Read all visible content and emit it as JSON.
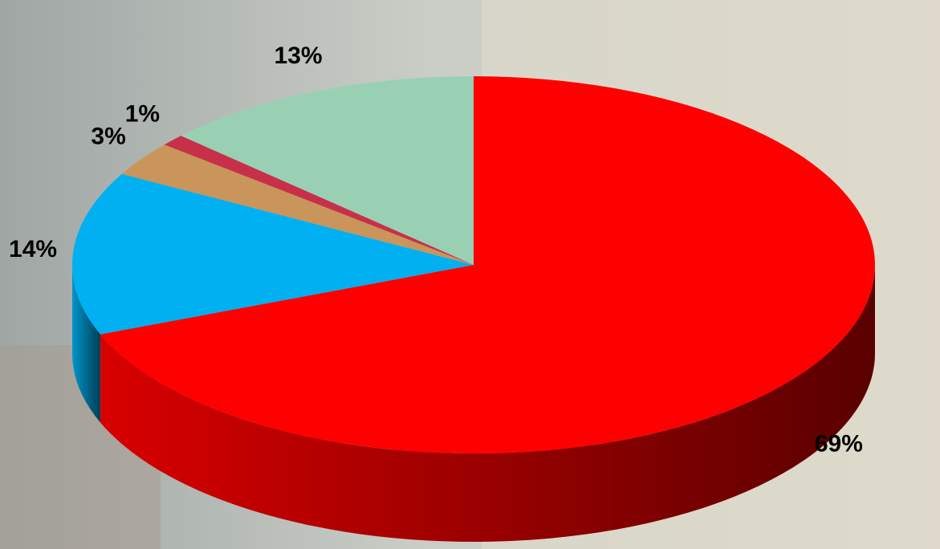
{
  "chart_data": {
    "type": "pie",
    "values": [
      69,
      14,
      3,
      1,
      13
    ],
    "value_labels": [
      "69%",
      "14%",
      "3%",
      "1%",
      "13%"
    ],
    "colors": [
      "#ff0000",
      "#00b0f0",
      "#c9955a",
      "#c8304a",
      "#99d0b4"
    ]
  }
}
